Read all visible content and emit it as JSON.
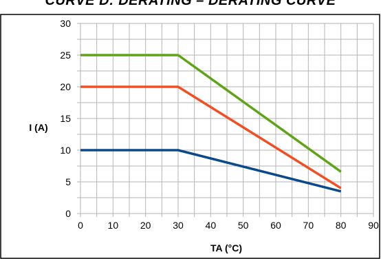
{
  "chart_data": {
    "type": "line",
    "title": "CURVE D: DERATING – DERATING CURVE",
    "xlabel": "TA (°C)",
    "ylabel": "I (A)",
    "xlim": [
      0,
      90
    ],
    "ylim": [
      0,
      30
    ],
    "x_ticks": [
      0,
      10,
      20,
      30,
      40,
      50,
      60,
      70,
      80,
      90
    ],
    "y_ticks": [
      0,
      5,
      10,
      15,
      20,
      25,
      30
    ],
    "x_minor_step": 5,
    "y_minor_step": 2.5,
    "grid": true,
    "series": [
      {
        "color": "#5fa319",
        "x": [
          0,
          30,
          80
        ],
        "y": [
          25,
          25,
          6.6
        ]
      },
      {
        "color": "#f04e23",
        "x": [
          0,
          30,
          80
        ],
        "y": [
          20,
          20,
          4
        ]
      },
      {
        "color": "#0b4a8a",
        "x": [
          0,
          30,
          80
        ],
        "y": [
          10,
          10,
          3.5
        ]
      }
    ]
  }
}
